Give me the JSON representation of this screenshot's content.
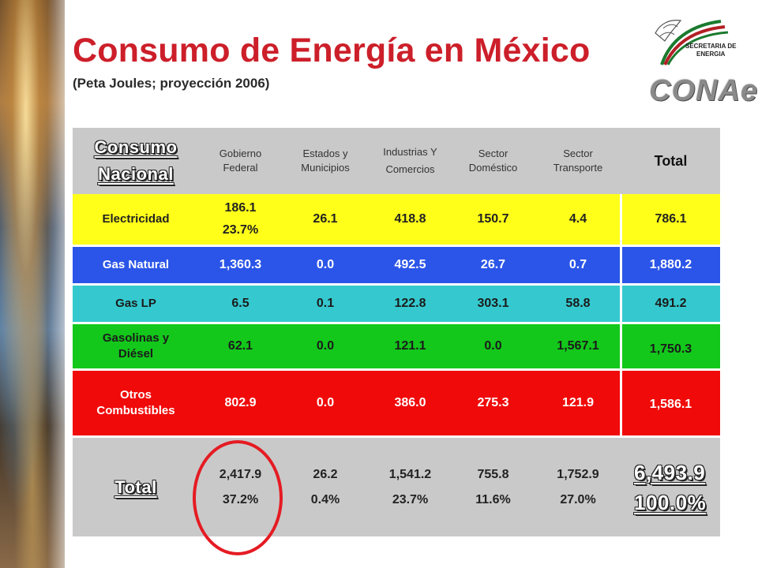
{
  "header": {
    "title": "Consumo de Energía en México",
    "subtitle": "(Peta Joules; proyección 2006)"
  },
  "logos": {
    "sener_line1": "SECRETARIA DE",
    "sener_line2": "ENERGIA",
    "conae": "CONAe"
  },
  "table": {
    "corner_line1": "Consumo",
    "corner_line2": "Nacional",
    "columns": [
      "Gobierno Federal",
      "Estados y Municipios",
      "Industrias Y Comercios",
      "Sector Doméstico",
      "Sector Transporte",
      "Total"
    ],
    "rows": [
      {
        "label": "Electricidad",
        "values": [
          "186.1",
          "26.1",
          "418.8",
          "150.7",
          "4.4",
          "786.1"
        ],
        "extra": "23.7%",
        "color": "#ffff1a"
      },
      {
        "label": "Gas Natural",
        "values": [
          "1,360.3",
          "0.0",
          "492.5",
          "26.7",
          "0.7",
          "1,880.2"
        ],
        "color": "#2b55e8"
      },
      {
        "label": "Gas LP",
        "values": [
          "6.5",
          "0.1",
          "122.8",
          "303.1",
          "58.8",
          "491.2"
        ],
        "color": "#35c9cf"
      },
      {
        "label": "Gasolinas y Diésel",
        "values": [
          "62.1",
          "0.0",
          "121.1",
          "0.0",
          "1,567.1",
          "1,750.3"
        ],
        "color": "#13c81b"
      },
      {
        "label": "Otros Combustibles",
        "values": [
          "802.9",
          "0.0",
          "386.0",
          "275.3",
          "121.9",
          "1,586.1"
        ],
        "color": "#f00a0a"
      }
    ],
    "total": {
      "label": "Total",
      "values": [
        "2,417.9",
        "26.2",
        "1,541.2",
        "755.8",
        "1,752.9",
        "6,493.9"
      ],
      "percents": [
        "37.2%",
        "0.4%",
        "23.7%",
        "11.6%",
        "27.0%",
        "100.0%"
      ]
    }
  },
  "highlight_color": "#e51b23"
}
